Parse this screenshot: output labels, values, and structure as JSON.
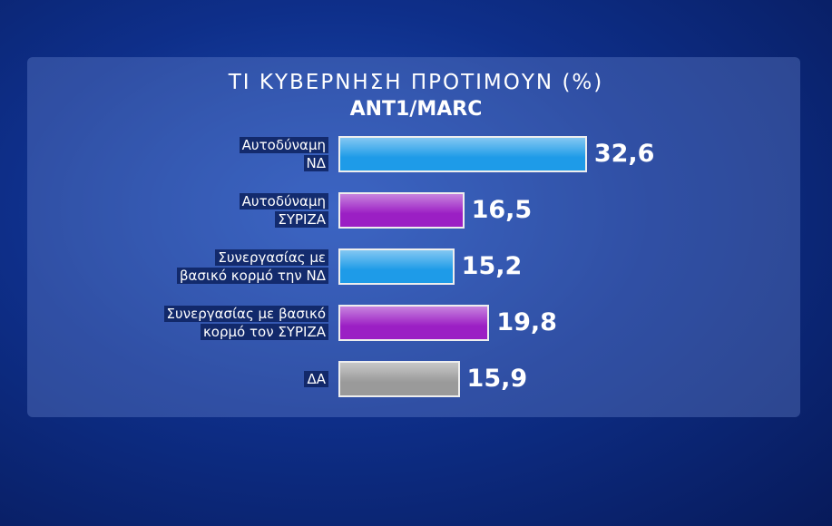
{
  "chart_data": {
    "type": "bar",
    "orientation": "horizontal",
    "title": "ΤΙ ΚΥΒΕΡΝΗΣΗ ΠΡΟΤΙΜΟΥΝ (%)",
    "subtitle": "ANT1/MARC",
    "categories": [
      "Αυτοδύναμη\nΝΔ",
      "Αυτοδύναμη\nΣΥΡΙΖΑ",
      "Συνεργασίας με\nβασικό κορμό την ΝΔ",
      "Συνεργασίας με βασικό\nκορμό τον ΣΥΡΙΖΑ",
      "ΔΑ"
    ],
    "values": [
      32.6,
      16.5,
      15.2,
      19.8,
      15.9
    ],
    "value_labels": [
      "32,6",
      "16,5",
      "15,2",
      "19,8",
      "15,9"
    ],
    "colors": [
      "#1e9be8",
      "#9b1fc4",
      "#1e9be8",
      "#9b1fc4",
      "#9a9a9a"
    ]
  }
}
